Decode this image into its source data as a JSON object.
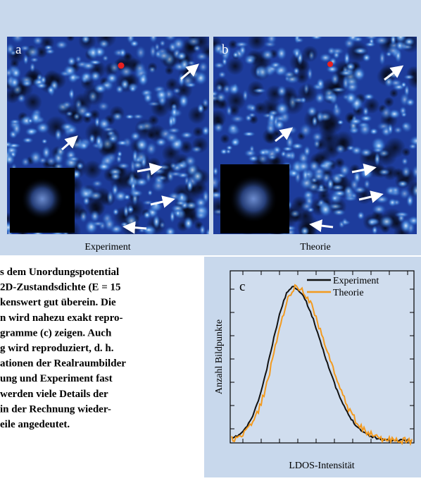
{
  "figure": {
    "panel_a": {
      "label": "a",
      "caption": "Experiment"
    },
    "panel_b": {
      "label": "b",
      "caption": "Theorie"
    },
    "panel_c": {
      "label": "c",
      "legend": [
        "Experiment",
        "Theorie"
      ],
      "y_label": "Anzahl Bildpunkte",
      "x_label": "LDOS-Intensität"
    }
  },
  "text": {
    "lines": [
      "s dem Unordungspotential",
      "2D-Zustandsdichte (E = 15",
      "kenswert gut überein. Die",
      "n wird nahezu exakt repro-",
      "gramme (c) zeigen. Auch",
      "g wird reproduziert, d. h.",
      "ationen der Realraumbilder",
      "ung und Experiment fast",
      "werden viele Details der",
      "in der Rechnung wieder-",
      "eile angedeutet."
    ]
  }
}
